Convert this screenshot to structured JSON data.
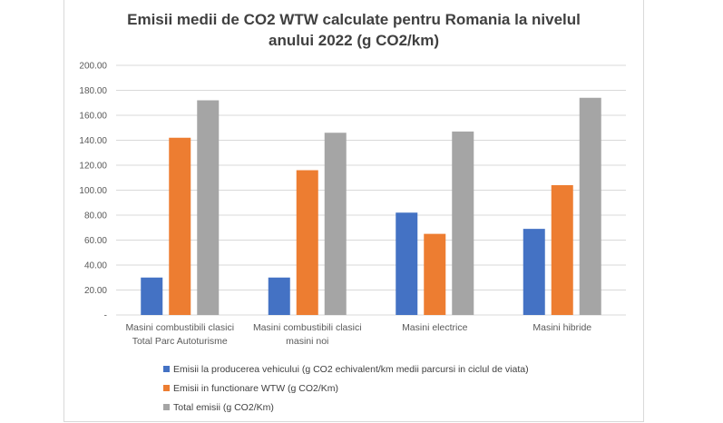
{
  "chart_data": {
    "type": "bar",
    "title_lines": [
      "Emisii medii de CO2 WTW  calculate pentru Romania la nivelul",
      "anului 2022  (g CO2/km)"
    ],
    "categories": [
      [
        "Masini combustibili clasici",
        "Total Parc Autoturisme"
      ],
      [
        "Masini combustibili clasici",
        "masini noi"
      ],
      [
        "Masini electrice"
      ],
      [
        "Masini hibride"
      ]
    ],
    "series": [
      {
        "name": "Emisii la producerea vehicului (g CO2 echivalent/km medii parcursi in ciclul de viata)",
        "color": "#4472c4",
        "values": [
          30,
          30,
          82,
          69
        ]
      },
      {
        "name": "Emisii in functionare WTW (g CO2/Km)",
        "color": "#ed7d31",
        "values": [
          142,
          116,
          65,
          104
        ]
      },
      {
        "name": "Total emisii (g CO2/Km)",
        "color": "#a5a5a5",
        "values": [
          172,
          146,
          147,
          174
        ]
      }
    ],
    "ylim": [
      0,
      200
    ],
    "yticks": [
      0,
      20,
      40,
      60,
      80,
      100,
      120,
      140,
      160,
      180,
      200
    ],
    "ytick_labels": [
      "-",
      "20.00",
      "40.00",
      "60.00",
      "80.00",
      "100.00",
      "120.00",
      "140.00",
      "160.00",
      "180.00",
      "200.00"
    ],
    "grid": true,
    "legend_position": "bottom"
  }
}
